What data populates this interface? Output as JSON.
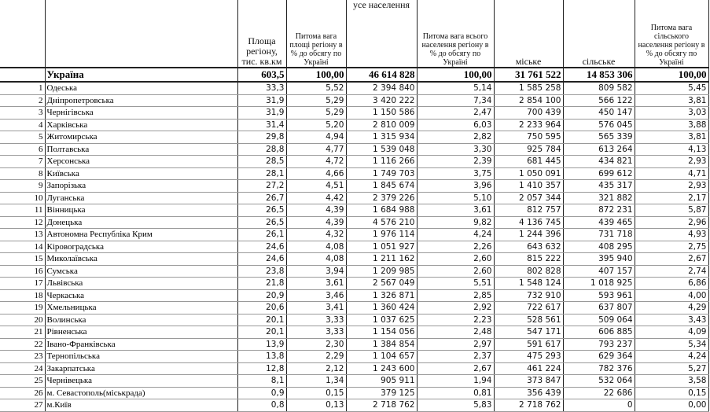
{
  "headers": [
    "",
    "",
    "Площа регіону, тис. кв.км",
    "Питома вага площі регіону в % до обсягу по Україні",
    "усе населення",
    "Питома вага всього населення регіону  в % до обсягу по Україні",
    "міське",
    "сільське",
    "Питома вага сільського населення регіону в % до обсягу по Україні"
  ],
  "total": {
    "name": "Україна",
    "values": [
      "603,5",
      "100,00",
      "46 614 828",
      "100,00",
      "31 761 522",
      "14 853 306",
      "100,00"
    ]
  },
  "rows": [
    {
      "n": "1",
      "name": "Одеська",
      "values": [
        "33,3",
        "5,52",
        "2 394 840",
        "5,14",
        "1 585 258",
        "809 582",
        "5,45"
      ]
    },
    {
      "n": "2",
      "name": "Дніпропетровська",
      "values": [
        "31,9",
        "5,29",
        "3 420 222",
        "7,34",
        "2 854 100",
        "566 122",
        "3,81"
      ]
    },
    {
      "n": "3",
      "name": "Чернігівська",
      "values": [
        "31,9",
        "5,29",
        "1 150 586",
        "2,47",
        "700 439",
        "450 147",
        "3,03"
      ]
    },
    {
      "n": "4",
      "name": "Харківська",
      "values": [
        "31,4",
        "5,20",
        "2 810 009",
        "6,03",
        "2 233 964",
        "576 045",
        "3,88"
      ]
    },
    {
      "n": "5",
      "name": "Житомирська",
      "values": [
        "29,8",
        "4,94",
        "1 315 934",
        "2,82",
        "750 595",
        "565 339",
        "3,81"
      ]
    },
    {
      "n": "6",
      "name": "Полтавська",
      "values": [
        "28,8",
        "4,77",
        "1 539 048",
        "3,30",
        "925 784",
        "613 264",
        "4,13"
      ]
    },
    {
      "n": "7",
      "name": "Херсонська",
      "values": [
        "28,5",
        "4,72",
        "1 116 266",
        "2,39",
        "681 445",
        "434 821",
        "2,93"
      ]
    },
    {
      "n": "8",
      "name": "Київська",
      "values": [
        "28,1",
        "4,66",
        "1 749 703",
        "3,75",
        "1 050 091",
        "699 612",
        "4,71"
      ]
    },
    {
      "n": "9",
      "name": "Запорізька",
      "values": [
        "27,2",
        "4,51",
        "1 845 674",
        "3,96",
        "1 410 357",
        "435 317",
        "2,93"
      ]
    },
    {
      "n": "10",
      "name": "Луганська",
      "values": [
        "26,7",
        "4,42",
        "2 379 226",
        "5,10",
        "2 057 344",
        "321 882",
        "2,17"
      ]
    },
    {
      "n": "11",
      "name": "Вінницька",
      "values": [
        "26,5",
        "4,39",
        "1 684 988",
        "3,61",
        "812 757",
        "872 231",
        "5,87"
      ]
    },
    {
      "n": "12",
      "name": "Донецька",
      "values": [
        "26,5",
        "4,39",
        "4 576 210",
        "9,82",
        "4 136 745",
        "439 465",
        "2,96"
      ]
    },
    {
      "n": "13",
      "name": "Автономна Республіка Крим",
      "values": [
        "26,1",
        "4,32",
        "1 976 114",
        "4,24",
        "1 244 396",
        "731 718",
        "4,93"
      ]
    },
    {
      "n": "14",
      "name": "Кіровоградська",
      "values": [
        "24,6",
        "4,08",
        "1 051 927",
        "2,26",
        "643 632",
        "408 295",
        "2,75"
      ]
    },
    {
      "n": "15",
      "name": "Миколаївська",
      "values": [
        "24,6",
        "4,08",
        "1 211 162",
        "2,60",
        "815 222",
        "395 940",
        "2,67"
      ]
    },
    {
      "n": "16",
      "name": "Сумська",
      "values": [
        "23,8",
        "3,94",
        "1 209 985",
        "2,60",
        "802 828",
        "407 157",
        "2,74"
      ]
    },
    {
      "n": "17",
      "name": "Львівська",
      "values": [
        "21,8",
        "3,61",
        "2 567 049",
        "5,51",
        "1 548 124",
        "1 018 925",
        "6,86"
      ]
    },
    {
      "n": "18",
      "name": "Черкаська",
      "values": [
        "20,9",
        "3,46",
        "1 326 871",
        "2,85",
        "732 910",
        "593 961",
        "4,00"
      ]
    },
    {
      "n": "19",
      "name": "Хмельницька",
      "values": [
        "20,6",
        "3,41",
        "1 360 424",
        "2,92",
        "722 617",
        "637 807",
        "4,29"
      ]
    },
    {
      "n": "20",
      "name": "Волинська",
      "values": [
        "20,1",
        "3,33",
        "1 037 625",
        "2,23",
        "528 561",
        "509 064",
        "3,43"
      ]
    },
    {
      "n": "21",
      "name": "Рівненська",
      "values": [
        "20,1",
        "3,33",
        "1 154 056",
        "2,48",
        "547 171",
        "606 885",
        "4,09"
      ]
    },
    {
      "n": "22",
      "name": "Івано-Франківська",
      "values": [
        "13,9",
        "2,30",
        "1 384 854",
        "2,97",
        "591 617",
        "793 237",
        "5,34"
      ]
    },
    {
      "n": "23",
      "name": "Тернопільська",
      "values": [
        "13,8",
        "2,29",
        "1 104 657",
        "2,37",
        "475 293",
        "629 364",
        "4,24"
      ]
    },
    {
      "n": "24",
      "name": "Закарпатська",
      "values": [
        "12,8",
        "2,12",
        "1 243 600",
        "2,67",
        "461 224",
        "782 376",
        "5,27"
      ]
    },
    {
      "n": "25",
      "name": "Чернівецька",
      "values": [
        "8,1",
        "1,34",
        "905 911",
        "1,94",
        "373 847",
        "532 064",
        "3,58"
      ]
    },
    {
      "n": "26",
      "name": "м. Севастополь(міськрада)",
      "values": [
        "0,9",
        "0,15",
        "379 125",
        "0,81",
        "356 439",
        "22 686",
        "0,15"
      ]
    },
    {
      "n": "27",
      "name": "м.Київ",
      "values": [
        "0,8",
        "0,13",
        "2 718 762",
        "5,83",
        "2 718 762",
        "0",
        "0,00"
      ]
    }
  ]
}
